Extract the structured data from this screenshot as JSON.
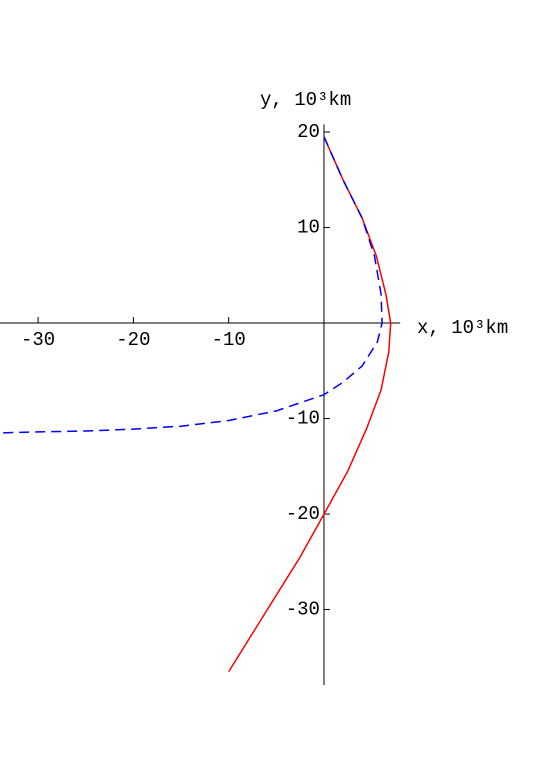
{
  "chart_data": {
    "type": "line",
    "xlabel": "x, 10³km",
    "ylabel": "y, 10³km",
    "xlim": [
      -34,
      8
    ],
    "ylim": [
      -37.9,
      20.8
    ],
    "xticks": [
      -30,
      -20,
      -10
    ],
    "yticks": [
      -30,
      -20,
      -10,
      10,
      20
    ],
    "series": [
      {
        "color": "#ff0000",
        "style": "solid",
        "x": [
          0,
          2,
          4,
          5.5,
          6.5,
          7,
          6.8,
          6,
          4.5,
          2.5,
          0,
          -2.5,
          -5,
          -7.5,
          -10
        ],
        "values": [
          19.5,
          15,
          11,
          7,
          3,
          0,
          -3,
          -7,
          -11,
          -15.5,
          -20,
          -24.5,
          -28.5,
          -32.5,
          -36.5
        ]
      },
      {
        "color": "#0000ff",
        "style": "dashed",
        "x": [
          0,
          2,
          4,
          5.3,
          6,
          6.1,
          5.6,
          4,
          2,
          0,
          -5,
          -10,
          -15,
          -20,
          -25,
          -30,
          -34
        ],
        "values": [
          19.5,
          15,
          11,
          7,
          3,
          0,
          -2,
          -4.5,
          -6.2,
          -7.5,
          -9.2,
          -10.2,
          -10.8,
          -11.1,
          -11.3,
          -11.4,
          -11.5
        ]
      }
    ]
  }
}
